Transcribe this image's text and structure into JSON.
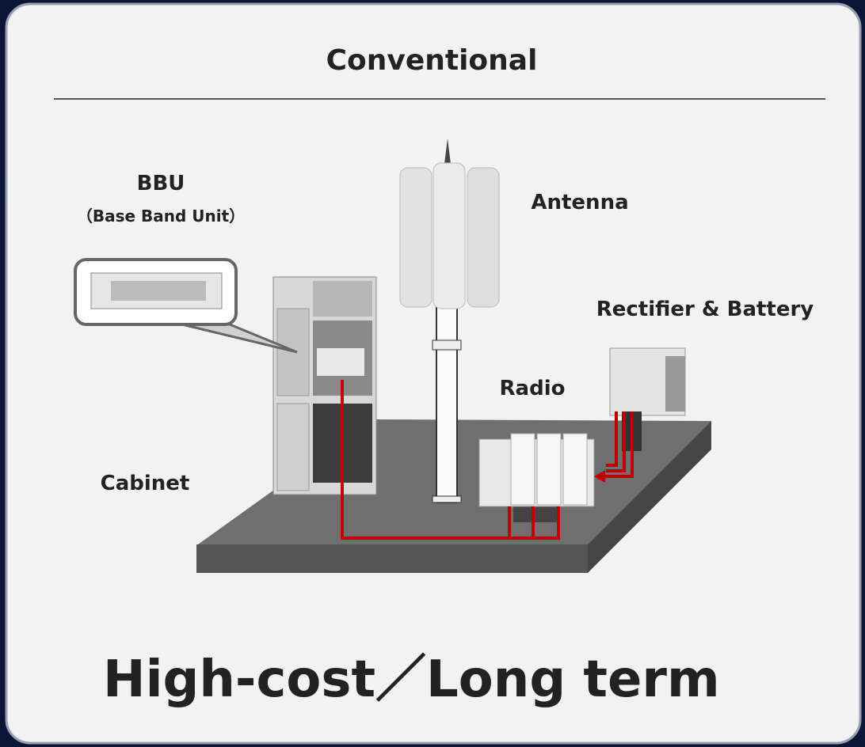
{
  "header": {
    "title": "Conventional"
  },
  "nodes": [
    {
      "label": "BBU",
      "sublabel": "（Base Band Unit）"
    },
    {
      "label": "Antenna"
    },
    {
      "label": "Rectifier & Battery"
    },
    {
      "label": "Radio"
    },
    {
      "label": "Cabinet"
    }
  ],
  "footer": {
    "text": "High-cost／Long term"
  }
}
